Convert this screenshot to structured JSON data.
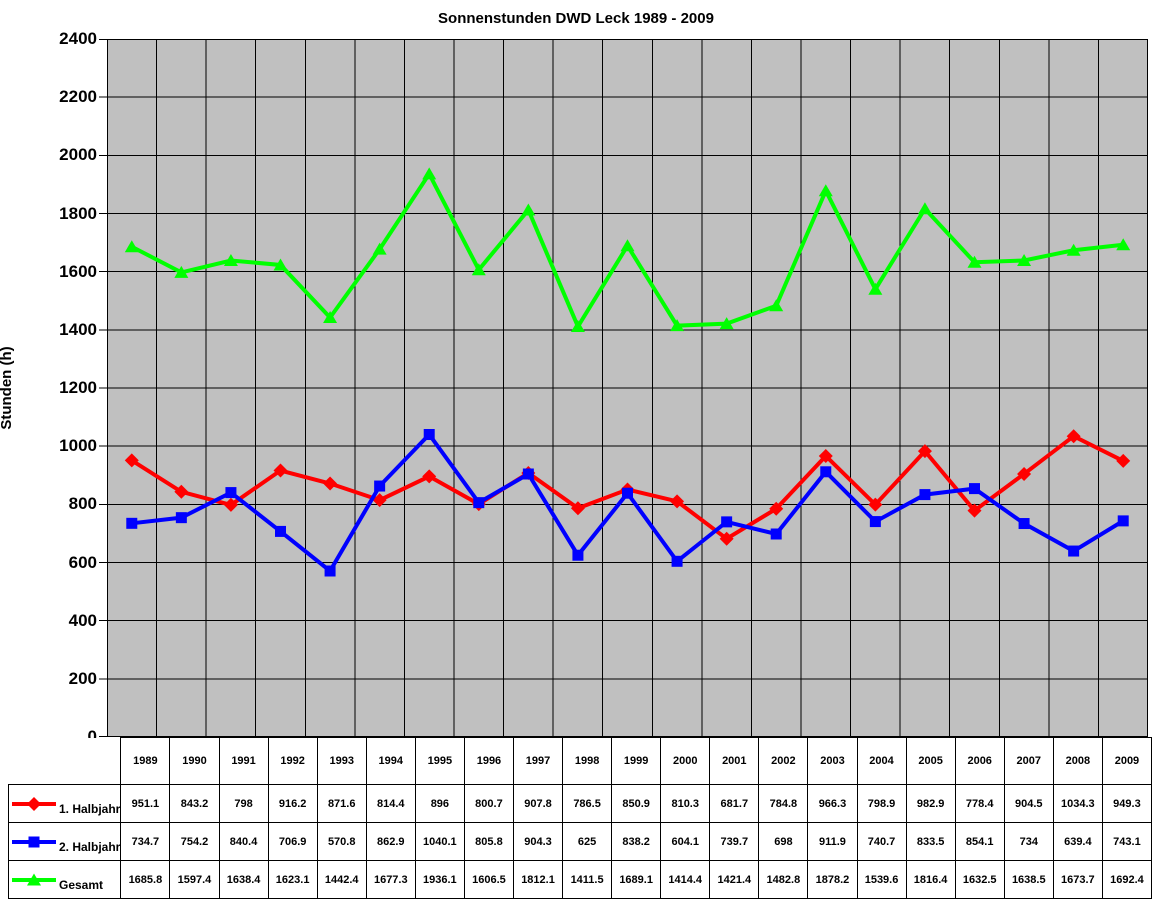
{
  "chart_data": {
    "type": "line",
    "title": "Sonnenstunden DWD Leck 1989 - 2009",
    "xlabel": "",
    "ylabel": "Stunden (h)",
    "ylim": [
      0,
      2400
    ],
    "ytick_step": 200,
    "yticks": [
      0,
      200,
      400,
      600,
      800,
      1000,
      1200,
      1400,
      1600,
      1800,
      2000,
      2200,
      2400
    ],
    "grid": "both",
    "plot_background": "#c0c0c0",
    "gridline_color": "#000000",
    "legend_position": "table-left-column",
    "categories": [
      "1989",
      "1990",
      "1991",
      "1992",
      "1993",
      "1994",
      "1995",
      "1996",
      "1997",
      "1998",
      "1999",
      "2000",
      "2001",
      "2002",
      "2003",
      "2004",
      "2005",
      "2006",
      "2007",
      "2008",
      "2009"
    ],
    "series": [
      {
        "name": "1. Halbjahr",
        "color": "#ff0000",
        "marker": "diamond",
        "values": [
          951.1,
          843.2,
          798,
          916.2,
          871.6,
          814.4,
          896,
          800.7,
          907.8,
          786.5,
          850.9,
          810.3,
          681.7,
          784.8,
          966.3,
          798.9,
          982.9,
          778.4,
          904.5,
          1034.3,
          949.3
        ]
      },
      {
        "name": "2. Halbjahr",
        "color": "#0000ff",
        "marker": "square",
        "values": [
          734.7,
          754.2,
          840.4,
          706.9,
          570.8,
          862.9,
          1040.1,
          805.8,
          904.3,
          625,
          838.2,
          604.1,
          739.7,
          698,
          911.9,
          740.7,
          833.5,
          854.1,
          734,
          639.4,
          743.1
        ]
      },
      {
        "name": "Gesamt",
        "color": "#00ff00",
        "marker": "triangle",
        "values": [
          1685.8,
          1597.4,
          1638.4,
          1623.1,
          1442.4,
          1677.3,
          1936.1,
          1606.5,
          1812.1,
          1411.5,
          1689.1,
          1414.4,
          1421.4,
          1482.8,
          1878.2,
          1539.6,
          1816.4,
          1632.5,
          1638.5,
          1673.7,
          1692.4
        ]
      }
    ]
  }
}
